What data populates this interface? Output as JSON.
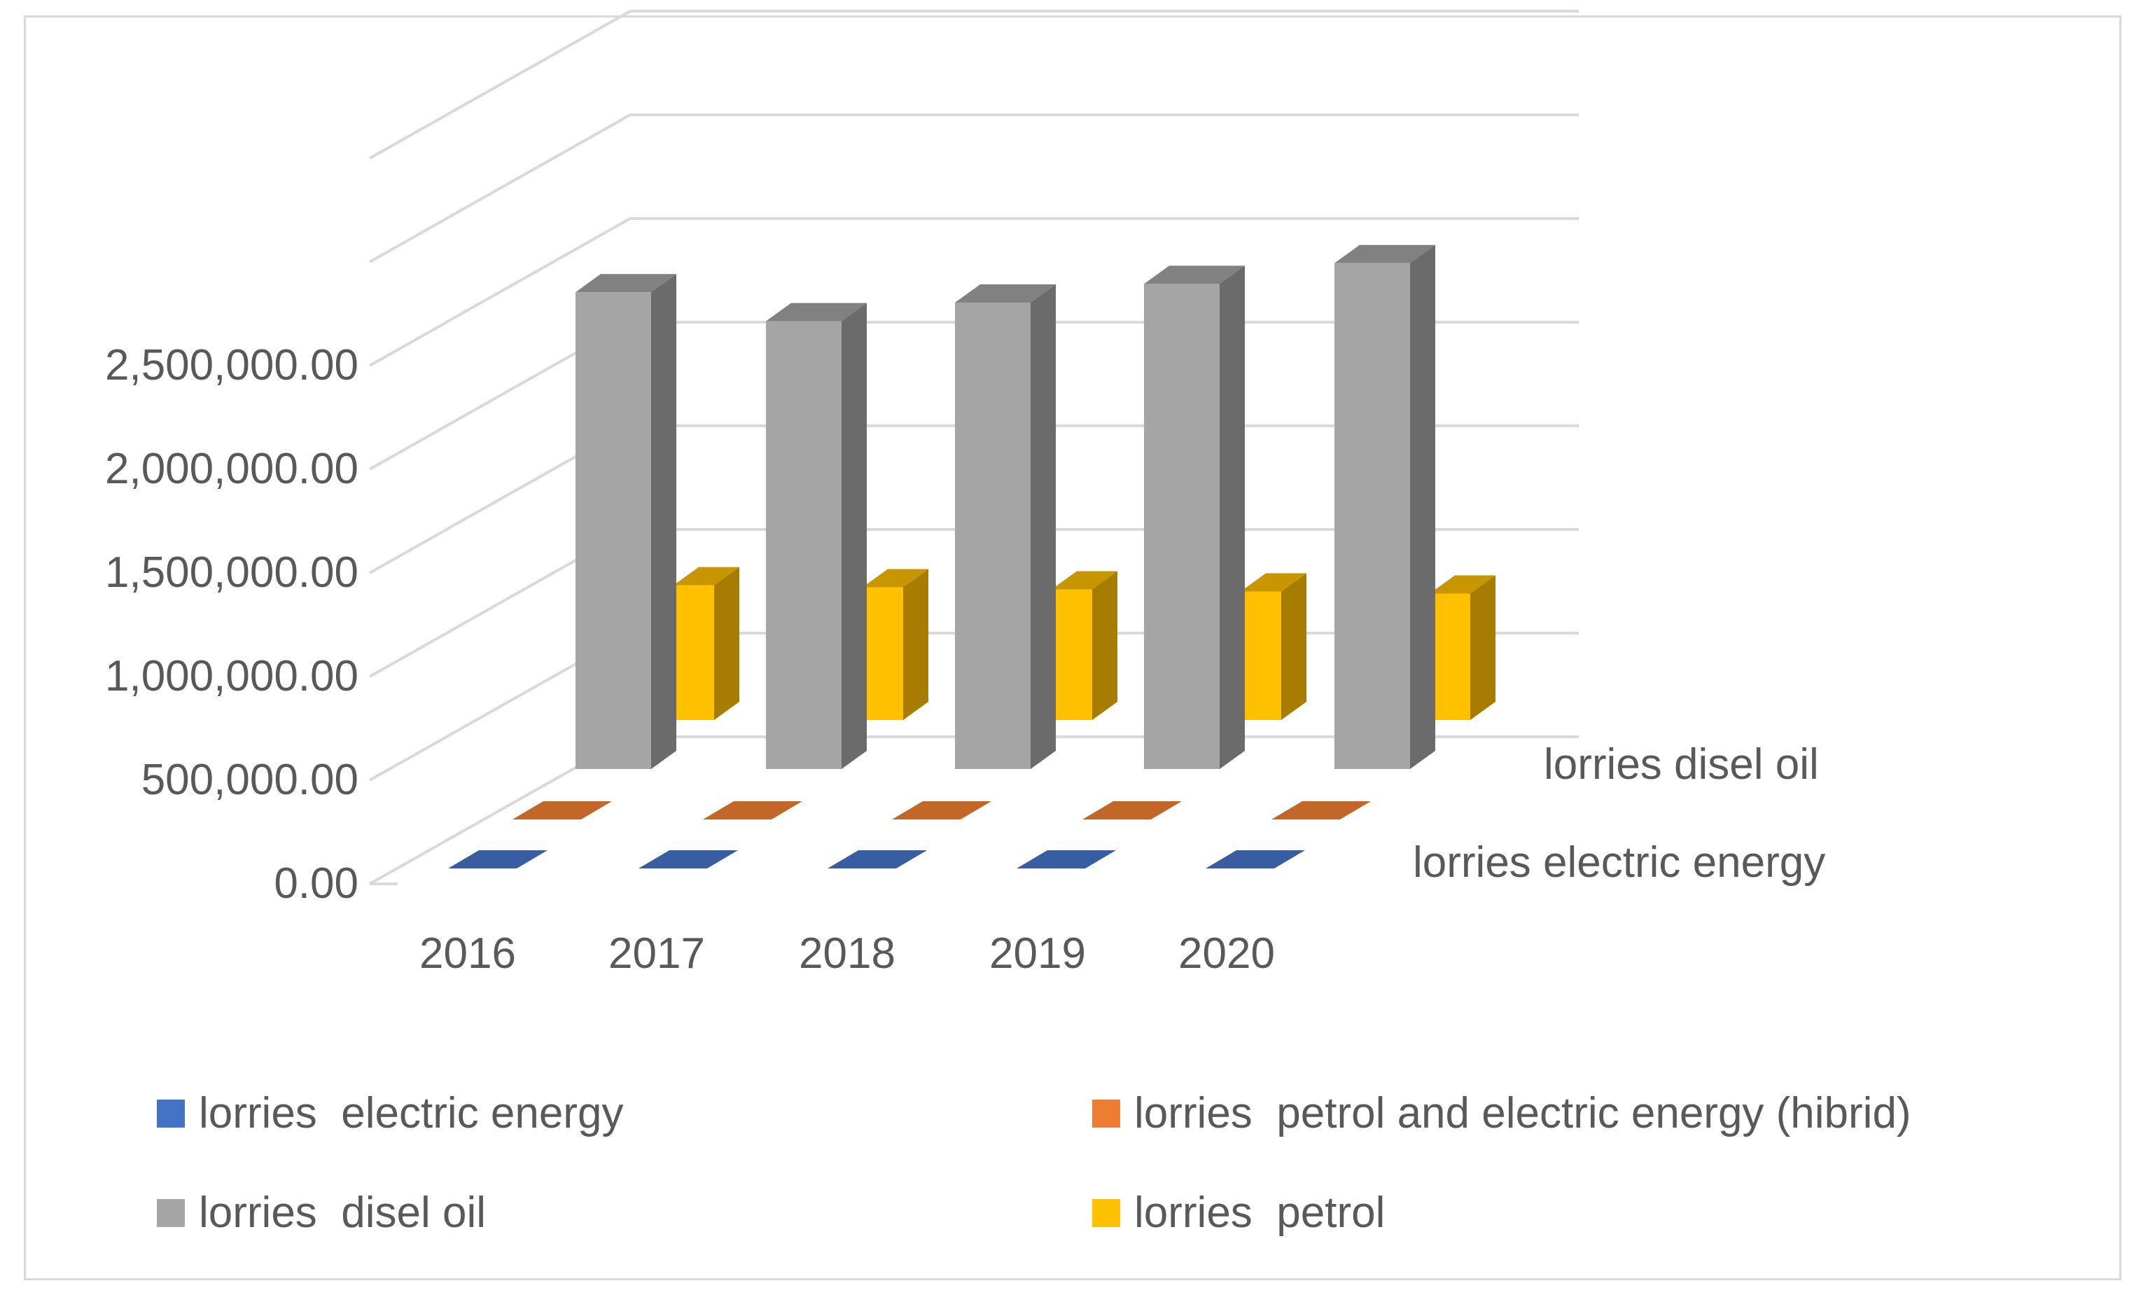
{
  "chart_data": {
    "type": "bar",
    "variant": "3d-column",
    "title": "",
    "xlabel": "",
    "ylabel": "",
    "categories": [
      "2016",
      "2017",
      "2018",
      "2019",
      "2020"
    ],
    "y_ticks": [
      "0.00",
      "500,000.00",
      "1,000,000.00",
      "1,500,000.00",
      "2,000,000.00",
      "2,500,000.00"
    ],
    "ylim": [
      0,
      3500000
    ],
    "depth_axis_labels": [
      "lorries  disel oil",
      "lorries  electric energy"
    ],
    "series": [
      {
        "name": "lorries  electric energy",
        "color": "#4472c4",
        "values": [
          0,
          0,
          0,
          0,
          0
        ]
      },
      {
        "name": "lorries  petrol and electric energy (hibrid)",
        "color": "#ed7d31",
        "values": [
          0,
          0,
          0,
          0,
          0
        ]
      },
      {
        "name": "lorries  disel oil",
        "color": "#a5a5a5",
        "values": [
          2300000,
          2160000,
          2250000,
          2340000,
          2440000
        ]
      },
      {
        "name": "lorries  petrol",
        "color": "#ffc000",
        "values": [
          650000,
          640000,
          630000,
          620000,
          610000
        ]
      }
    ],
    "legend_position": "bottom"
  }
}
